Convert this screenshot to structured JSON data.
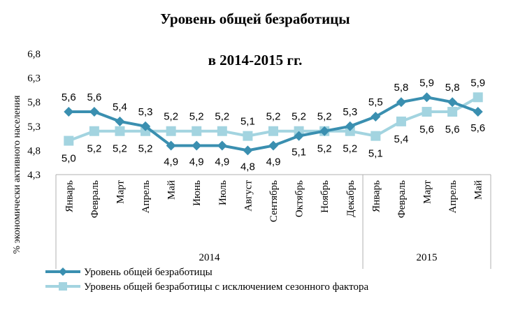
{
  "chart_data": {
    "type": "line",
    "title": "Уровень общей безработицы",
    "subtitle": "в 2014-2015 гг.",
    "ylabel": "% экономически активного населения",
    "ylim": [
      4.3,
      6.8
    ],
    "yticks": [
      "6,8",
      "6,3",
      "5,8",
      "5,3",
      "4,8",
      "4,3"
    ],
    "ytick_values": [
      6.8,
      6.3,
      5.8,
      5.3,
      4.8,
      4.3
    ],
    "categories": [
      "Январь",
      "Февраль",
      "Март",
      "Апрель",
      "Май",
      "Июнь",
      "Июль",
      "Август",
      "Сентябрь",
      "Октябрь",
      "Ноябрь",
      "Декабрь",
      "Январь",
      "Февраль",
      "Март",
      "Апрель",
      "Май"
    ],
    "year_groups": [
      {
        "label": "2014",
        "count": 12
      },
      {
        "label": "2015",
        "count": 5
      }
    ],
    "series": [
      {
        "name": "Уровень общей безработицы",
        "color": "#3a8fb0",
        "marker": "diamond",
        "values": [
          5.6,
          5.6,
          5.4,
          5.3,
          4.9,
          4.9,
          4.9,
          4.8,
          4.9,
          5.1,
          5.2,
          5.3,
          5.5,
          5.8,
          5.9,
          5.8,
          5.6
        ],
        "labels": [
          "5,6",
          "5,6",
          "5,4",
          "5,3",
          "4,9",
          "4,9",
          "4,9",
          "4,8",
          "4,9",
          "5,1",
          "5,2",
          "5,3",
          "5,5",
          "5,8",
          "5,9",
          "5,8",
          "5,6"
        ]
      },
      {
        "name": "Уровень общей безработицы с исключением сезонного фактора",
        "color": "#a3d4e0",
        "marker": "square",
        "values": [
          5.0,
          5.2,
          5.2,
          5.2,
          5.2,
          5.2,
          5.2,
          5.1,
          5.2,
          5.2,
          5.2,
          5.2,
          5.1,
          5.4,
          5.6,
          5.6,
          5.9
        ],
        "labels": [
          "5,0",
          "5,2",
          "5,2",
          "5,2",
          "5,2",
          "5,2",
          "5,2",
          "5,1",
          "5,2",
          "5,2",
          "5,2",
          "5,2",
          "5,1",
          "5,4",
          "5,6",
          "5,6",
          "5,9"
        ]
      }
    ],
    "grid": false,
    "legend": "bottom-left"
  }
}
